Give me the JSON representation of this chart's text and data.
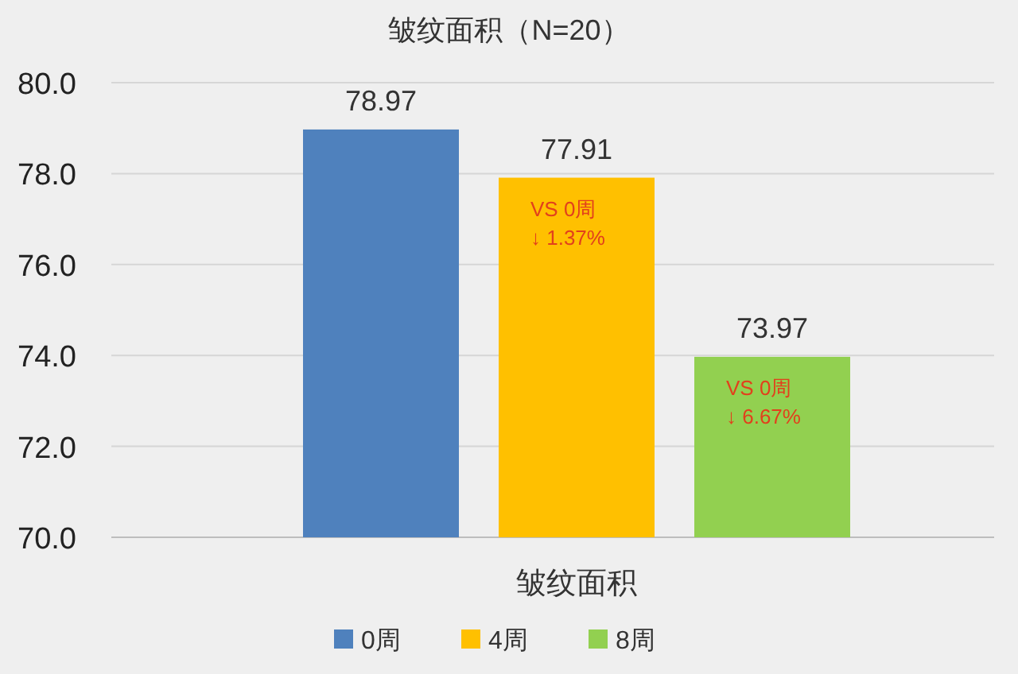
{
  "chart_data": {
    "type": "bar",
    "title": "皱纹面积（N=20）",
    "xlabel": "皱纹面积",
    "categories": [
      null
    ],
    "series": [
      {
        "name": "0周",
        "color": "#4f81bd",
        "values": [
          78.97
        ]
      },
      {
        "name": "4周",
        "color": "#ffc000",
        "values": [
          77.91
        ]
      },
      {
        "name": "8周",
        "color": "#92d050",
        "values": [
          73.97
        ]
      }
    ],
    "ylim": [
      70,
      80
    ],
    "yticks": [
      {
        "value": 70,
        "label": "70.0"
      },
      {
        "value": 72,
        "label": "72.0"
      },
      {
        "value": 74,
        "label": "74.0"
      },
      {
        "value": 76,
        "label": "76.0"
      },
      {
        "value": 78,
        "label": "78.0"
      },
      {
        "value": 80,
        "label": "80.0"
      }
    ],
    "grid": "y",
    "legend": "bottom",
    "data_labels": true,
    "annotations": [
      "VS 0周\n↓ 1.37%",
      "VS 0周\n↓ 6.67%"
    ]
  }
}
